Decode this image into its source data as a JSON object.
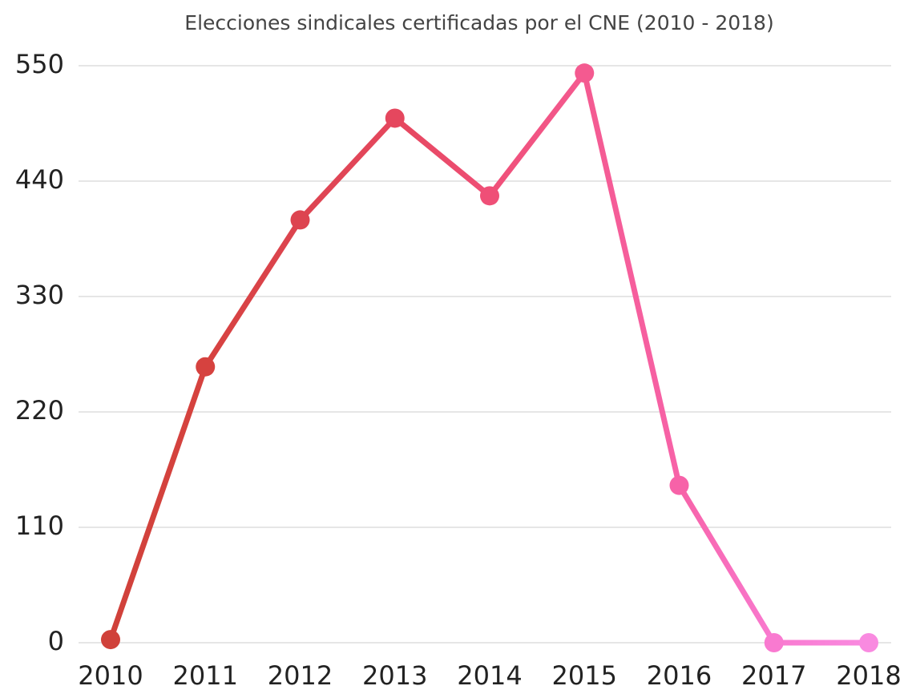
{
  "chart_data": {
    "type": "line",
    "title": "Elecciones sindicales certificadas por el CNE (2010 - 2018)",
    "categories": [
      "2010",
      "2011",
      "2012",
      "2013",
      "2014",
      "2015",
      "2016",
      "2017",
      "2018"
    ],
    "values": [
      3,
      263,
      403,
      500,
      426,
      543,
      150,
      0,
      0
    ],
    "point_colors": [
      "#d0413a",
      "#d6423f",
      "#dd4450",
      "#e5475e",
      "#ef4f77",
      "#f45a90",
      "#f762a8",
      "#f97ad0",
      "#f98ae0"
    ],
    "ylim": [
      0,
      550
    ],
    "yticks": [
      0,
      110,
      220,
      330,
      440,
      550
    ],
    "grid": true
  }
}
